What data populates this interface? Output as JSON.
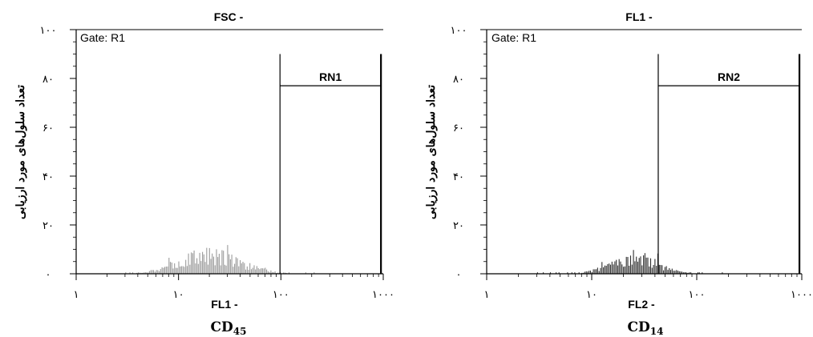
{
  "chart_data": [
    {
      "type": "bar",
      "title": "FSC  -",
      "gate_label": "Gate: R1",
      "xlabel": "FL1  -",
      "marker_label": "CD",
      "marker_sub": "45",
      "ylabel": "تعداد سلول‌های مورد ارزیابی",
      "x_scale": "log",
      "xlim": [
        1,
        1000
      ],
      "ylim": [
        0,
        100
      ],
      "x_ticks": [
        1,
        10,
        100,
        1000
      ],
      "x_tick_labels": [
        "۱",
        "۱۰",
        "۱۰۰",
        "۱۰۰۰"
      ],
      "y_ticks": [
        0,
        20,
        40,
        60,
        80,
        100
      ],
      "y_tick_labels": [
        "۰",
        "۲۰",
        "۴۰",
        "۶۰",
        "۸۰",
        "۱۰۰"
      ],
      "region": {
        "label": "RN1",
        "x_start": 98,
        "x_end": 950,
        "y_top": 90,
        "y_level": 77
      },
      "bar_color": "#9a9a9a",
      "histogram": {
        "peak_center_log10": 1.3,
        "peak_spread_log10": 0.42,
        "peak_height": 10,
        "max_value": 13,
        "x_min": 3,
        "x_max": 230,
        "seed": 17
      }
    },
    {
      "type": "bar",
      "title": "FL1  -",
      "gate_label": "Gate: R1",
      "xlabel": "FL2  -",
      "marker_label": "CD",
      "marker_sub": "14",
      "ylabel": "تعداد سلول‌های مورد ارزیابی",
      "x_scale": "log",
      "xlim": [
        1,
        1000
      ],
      "ylim": [
        0,
        100
      ],
      "x_ticks": [
        1,
        10,
        100,
        1000
      ],
      "x_tick_labels": [
        "۱",
        "۱۰",
        "۱۰۰",
        "۱۰۰۰"
      ],
      "y_ticks": [
        0,
        20,
        40,
        60,
        80,
        100
      ],
      "y_tick_labels": [
        "۰",
        "۲۰",
        "۴۰",
        "۶۰",
        "۸۰",
        "۱۰۰"
      ],
      "region": {
        "label": "RN2",
        "x_start": 43,
        "x_end": 950,
        "y_top": 90,
        "y_level": 77
      },
      "bar_color": "#2f2f2f",
      "histogram": {
        "peak_center_log10": 1.4,
        "peak_spread_log10": 0.3,
        "peak_height": 9,
        "max_value": 10,
        "x_min": 2.5,
        "x_max": 180,
        "seed": 29
      }
    }
  ]
}
